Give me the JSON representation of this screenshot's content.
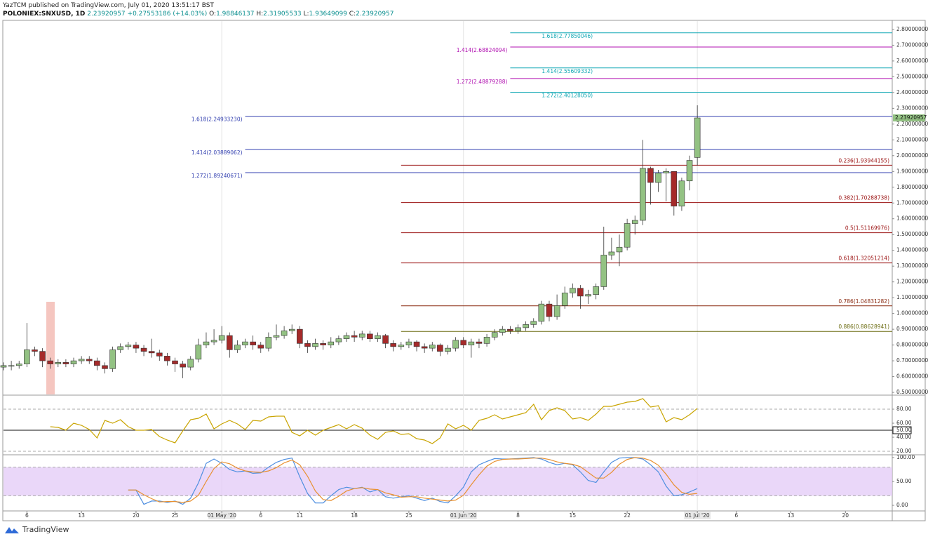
{
  "chart_data": {
    "type": "candlestick",
    "author_line": "YazTCM published on TradingView.com, July 01, 2020 13:51:17 BST",
    "symbol": "POLONIEX:SNXUSD, 1D",
    "change": "+0.27553186 (+14.03%)",
    "ohlc_labels": [
      "O:",
      "H:",
      "L:",
      "C:"
    ],
    "brand": "TradingView",
    "up_color": "#93c283",
    "down_color": "#a52a2a",
    "x": [
      "2020-04-03",
      "2020-04-04",
      "2020-04-05",
      "2020-04-06",
      "2020-04-07",
      "2020-04-08",
      "2020-04-09",
      "2020-04-10",
      "2020-04-11",
      "2020-04-12",
      "2020-04-13",
      "2020-04-14",
      "2020-04-15",
      "2020-04-16",
      "2020-04-17",
      "2020-04-18",
      "2020-04-19",
      "2020-04-20",
      "2020-04-21",
      "2020-04-22",
      "2020-04-23",
      "2020-04-24",
      "2020-04-25",
      "2020-04-26",
      "2020-04-27",
      "2020-04-28",
      "2020-04-29",
      "2020-04-30",
      "2020-05-01",
      "2020-05-02",
      "2020-05-03",
      "2020-05-04",
      "2020-05-05",
      "2020-05-06",
      "2020-05-07",
      "2020-05-08",
      "2020-05-09",
      "2020-05-10",
      "2020-05-11",
      "2020-05-12",
      "2020-05-13",
      "2020-05-14",
      "2020-05-15",
      "2020-05-16",
      "2020-05-17",
      "2020-05-18",
      "2020-05-19",
      "2020-05-20",
      "2020-05-21",
      "2020-05-22",
      "2020-05-23",
      "2020-05-24",
      "2020-05-25",
      "2020-05-26",
      "2020-05-27",
      "2020-05-28",
      "2020-05-29",
      "2020-05-30",
      "2020-05-31",
      "2020-06-01",
      "2020-06-02",
      "2020-06-03",
      "2020-06-04",
      "2020-06-05",
      "2020-06-06",
      "2020-06-07",
      "2020-06-08",
      "2020-06-09",
      "2020-06-10",
      "2020-06-11",
      "2020-06-12",
      "2020-06-13",
      "2020-06-14",
      "2020-06-15",
      "2020-06-16",
      "2020-06-17",
      "2020-06-18",
      "2020-06-19",
      "2020-06-20",
      "2020-06-21",
      "2020-06-22",
      "2020-06-23",
      "2020-06-24",
      "2020-06-25",
      "2020-06-26",
      "2020-06-27",
      "2020-06-28",
      "2020-06-29",
      "2020-06-30",
      "2020-07-01"
    ],
    "open": [
      0.66,
      0.67,
      0.67,
      0.68,
      0.77,
      0.76,
      0.7,
      0.68,
      0.69,
      0.68,
      0.7,
      0.71,
      0.7,
      0.67,
      0.65,
      0.77,
      0.79,
      0.8,
      0.78,
      0.76,
      0.75,
      0.73,
      0.7,
      0.68,
      0.66,
      0.71,
      0.8,
      0.82,
      0.83,
      0.86,
      0.77,
      0.8,
      0.82,
      0.8,
      0.78,
      0.85,
      0.86,
      0.89,
      0.9,
      0.81,
      0.79,
      0.81,
      0.8,
      0.82,
      0.84,
      0.86,
      0.85,
      0.87,
      0.84,
      0.86,
      0.81,
      0.79,
      0.8,
      0.82,
      0.79,
      0.78,
      0.8,
      0.76,
      0.78,
      0.83,
      0.8,
      0.82,
      0.81,
      0.85,
      0.88,
      0.9,
      0.89,
      0.91,
      0.93,
      0.95,
      1.06,
      0.98,
      1.05,
      1.13,
      1.16,
      1.11,
      1.12,
      1.17,
      1.37,
      1.39,
      1.42,
      1.57,
      1.59,
      1.92,
      1.83,
      1.89,
      1.9,
      1.68,
      1.84,
      1.98846137
    ],
    "high": [
      0.69,
      0.7,
      0.7,
      0.94,
      0.79,
      0.78,
      0.72,
      0.71,
      0.71,
      0.72,
      0.73,
      0.73,
      0.72,
      0.69,
      0.79,
      0.81,
      0.82,
      0.82,
      0.8,
      0.84,
      0.77,
      0.75,
      0.72,
      0.7,
      0.73,
      0.84,
      0.88,
      0.9,
      0.92,
      0.88,
      0.83,
      0.84,
      0.86,
      0.82,
      0.88,
      0.93,
      0.92,
      0.93,
      0.92,
      0.83,
      0.84,
      0.83,
      0.85,
      0.86,
      0.88,
      0.89,
      0.89,
      0.89,
      0.88,
      0.87,
      0.83,
      0.82,
      0.84,
      0.83,
      0.81,
      0.82,
      0.81,
      0.8,
      0.85,
      0.85,
      0.84,
      0.84,
      0.87,
      0.9,
      0.92,
      0.92,
      0.93,
      0.95,
      0.97,
      1.08,
      1.08,
      1.12,
      1.17,
      1.19,
      1.18,
      1.15,
      1.19,
      1.55,
      1.48,
      1.5,
      1.6,
      1.62,
      2.1,
      1.93,
      1.91,
      1.92,
      1.9,
      1.86,
      2.0,
      2.31905533
    ],
    "low": [
      0.64,
      0.64,
      0.65,
      0.66,
      0.73,
      0.66,
      0.65,
      0.66,
      0.66,
      0.66,
      0.68,
      0.68,
      0.64,
      0.62,
      0.63,
      0.75,
      0.77,
      0.75,
      0.73,
      0.72,
      0.7,
      0.67,
      0.63,
      0.59,
      0.64,
      0.69,
      0.78,
      0.8,
      0.81,
      0.72,
      0.75,
      0.78,
      0.77,
      0.75,
      0.76,
      0.83,
      0.84,
      0.87,
      0.78,
      0.75,
      0.77,
      0.77,
      0.78,
      0.8,
      0.82,
      0.82,
      0.83,
      0.82,
      0.82,
      0.78,
      0.76,
      0.77,
      0.78,
      0.76,
      0.75,
      0.76,
      0.73,
      0.74,
      0.76,
      0.78,
      0.72,
      0.78,
      0.79,
      0.83,
      0.86,
      0.87,
      0.87,
      0.89,
      0.91,
      0.93,
      0.95,
      0.96,
      1.03,
      1.1,
      1.03,
      1.06,
      1.09,
      1.15,
      1.34,
      1.3,
      1.4,
      1.5,
      1.56,
      1.69,
      1.77,
      1.71,
      1.62,
      1.65,
      1.78,
      1.93649099
    ],
    "close": [
      0.67,
      0.67,
      0.68,
      0.77,
      0.76,
      0.7,
      0.68,
      0.69,
      0.68,
      0.7,
      0.71,
      0.7,
      0.67,
      0.65,
      0.77,
      0.79,
      0.8,
      0.78,
      0.76,
      0.75,
      0.73,
      0.7,
      0.68,
      0.66,
      0.71,
      0.8,
      0.82,
      0.83,
      0.86,
      0.77,
      0.8,
      0.82,
      0.8,
      0.78,
      0.85,
      0.86,
      0.89,
      0.9,
      0.81,
      0.79,
      0.81,
      0.8,
      0.82,
      0.84,
      0.86,
      0.85,
      0.87,
      0.84,
      0.86,
      0.81,
      0.79,
      0.8,
      0.82,
      0.79,
      0.78,
      0.8,
      0.76,
      0.78,
      0.83,
      0.8,
      0.82,
      0.81,
      0.85,
      0.88,
      0.9,
      0.89,
      0.91,
      0.93,
      0.95,
      1.06,
      0.98,
      1.05,
      1.13,
      1.16,
      1.11,
      1.12,
      1.17,
      1.37,
      1.39,
      1.42,
      1.57,
      1.59,
      1.92,
      1.83,
      1.89,
      1.9,
      1.68,
      1.84,
      1.97,
      2.23920957
    ],
    "xlim": [
      "2020-04-03",
      "2020-07-26"
    ],
    "xticks": [
      {
        "value": "2020-04-06",
        "label": "6"
      },
      {
        "value": "2020-04-13",
        "label": "13"
      },
      {
        "value": "2020-04-20",
        "label": "20"
      },
      {
        "value": "2020-04-25",
        "label": "25"
      },
      {
        "value": "2020-05-01",
        "label": "01 May '20"
      },
      {
        "value": "2020-05-06",
        "label": "6"
      },
      {
        "value": "2020-05-11",
        "label": "11"
      },
      {
        "value": "2020-05-18",
        "label": "18"
      },
      {
        "value": "2020-05-25",
        "label": "25"
      },
      {
        "value": "2020-06-01",
        "label": "01 Jun '20"
      },
      {
        "value": "2020-06-08",
        "label": "8"
      },
      {
        "value": "2020-06-15",
        "label": "15"
      },
      {
        "value": "2020-06-22",
        "label": "22"
      },
      {
        "value": "2020-07-01",
        "label": "01 Jul '20"
      },
      {
        "value": "2020-07-06",
        "label": "6"
      },
      {
        "value": "2020-07-13",
        "label": "13"
      },
      {
        "value": "2020-07-20",
        "label": "20"
      }
    ],
    "x_separators": [
      "2020-05-01",
      "2020-06-01",
      "2020-07-01"
    ],
    "ylim": [
      0.487,
      2.853
    ],
    "yticks": [
      {
        "value": 0.5,
        "label": "0.50000000"
      },
      {
        "value": 0.6,
        "label": "0.60000000"
      },
      {
        "value": 0.7,
        "label": "0.70000000"
      },
      {
        "value": 0.8,
        "label": "0.80000000"
      },
      {
        "value": 0.9,
        "label": "0.90000000"
      },
      {
        "value": 1.0,
        "label": "1.00000000"
      },
      {
        "value": 1.1,
        "label": "1.10000000"
      },
      {
        "value": 1.2,
        "label": "1.20000000"
      },
      {
        "value": 1.3,
        "label": "1.30000000"
      },
      {
        "value": 1.4,
        "label": "1.40000000"
      },
      {
        "value": 1.5,
        "label": "1.50000000"
      },
      {
        "value": 1.6,
        "label": "1.60000000"
      },
      {
        "value": 1.7,
        "label": "1.70000000"
      },
      {
        "value": 1.8,
        "label": "1.80000000"
      },
      {
        "value": 1.9,
        "label": "1.90000000"
      },
      {
        "value": 2.0,
        "label": "2.00000000"
      },
      {
        "value": 2.1,
        "label": "2.10000000"
      },
      {
        "value": 2.2,
        "label": "2.20000000"
      },
      {
        "value": 2.3,
        "label": "2.30000000"
      },
      {
        "value": 2.4,
        "label": "2.40000000"
      },
      {
        "value": 2.5,
        "label": "2.50000000"
      },
      {
        "value": 2.6,
        "label": "2.60000000"
      },
      {
        "value": 2.7,
        "label": "2.70000000"
      },
      {
        "value": 2.8,
        "label": "2.80000000"
      }
    ],
    "fib_levels": [
      {
        "label": "1.618(2.77850046)",
        "value": 2.77850046,
        "color": "#13a8b5",
        "from": "2020-06-07",
        "label_side": "start"
      },
      {
        "label": "1.414(2.68824094)",
        "value": 2.68824094,
        "color": "#b010b0",
        "from": "2020-06-07",
        "label_side": "left"
      },
      {
        "label": "1.414(2.55609332)",
        "value": 2.55609332,
        "color": "#13a8b5",
        "from": "2020-06-07",
        "label_side": "start"
      },
      {
        "label": "1.272(2.48879288)",
        "value": 2.48879288,
        "color": "#b010b0",
        "from": "2020-06-07",
        "label_side": "left"
      },
      {
        "label": "1.272(2.40128050)",
        "value": 2.4012805,
        "color": "#13a8b5",
        "from": "2020-06-07",
        "label_side": "start"
      },
      {
        "label": "1.618(2.24933230)",
        "value": 2.2493323,
        "color": "#3340b0",
        "from": "2020-05-04",
        "label_side": "left"
      },
      {
        "label": "1.414(2.03889062)",
        "value": 2.03889062,
        "color": "#3340b0",
        "from": "2020-05-04",
        "label_side": "left"
      },
      {
        "label": "1.272(1.89240671)",
        "value": 1.89240671,
        "color": "#3340b0",
        "from": "2020-05-04",
        "label_side": "left"
      },
      {
        "label": "0.236(1.93944155)",
        "value": 1.93944155,
        "color": "#9a1010",
        "from": "2020-05-24",
        "label_side": "right"
      },
      {
        "label": "0.382(1.70288738)",
        "value": 1.70288738,
        "color": "#9a1010",
        "from": "2020-05-24",
        "label_side": "right"
      },
      {
        "label": "0.5(1.51169976)",
        "value": 1.51169976,
        "color": "#9a1010",
        "from": "2020-05-24",
        "label_side": "right"
      },
      {
        "label": "0.618(1.32051214)",
        "value": 1.32051214,
        "color": "#9a1010",
        "from": "2020-05-24",
        "label_side": "right"
      },
      {
        "label": "0.786(1.04831282)",
        "value": 1.04831282,
        "color": "#8a2a10",
        "from": "2020-05-24",
        "label_side": "right"
      },
      {
        "label": "0.886(0.88628941)",
        "value": 0.88628941,
        "color": "#6b6b10",
        "from": "2020-05-24",
        "label_side": "right"
      }
    ],
    "panels": [
      {
        "type": "line",
        "ylim": [
          16,
          98
        ],
        "yticks": [
          {
            "value": 80,
            "label": "80.00"
          },
          {
            "value": 60,
            "label": "60.00"
          },
          {
            "value": 50,
            "label": "50.00"
          },
          {
            "value": 40,
            "label": "40.00"
          },
          {
            "value": 20,
            "label": "20.00"
          }
        ],
        "hlines": [
          {
            "value": 80,
            "dash": true
          },
          {
            "value": 50,
            "dash": false
          },
          {
            "value": 20,
            "dash": true
          }
        ],
        "series": [
          {
            "color": "#c9a400",
            "values": [
              null,
              null,
              null,
              null,
              null,
              null,
              55,
              54,
              50,
              60,
              57,
              51,
              39,
              64,
              60,
              65,
              55,
              50,
              50,
              51,
              41,
              36,
              32,
              49,
              65,
              67,
              73,
              52,
              59,
              64,
              59,
              51,
              64,
              63,
              69,
              70,
              70,
              47,
              42,
              50,
              43,
              50,
              54,
              58,
              52,
              58,
              53,
              43,
              37,
              47,
              49,
              44,
              45,
              38,
              36,
              31,
              39,
              59,
              52,
              57,
              50,
              64,
              67,
              72,
              66,
              69,
              72,
              75,
              87,
              65,
              78,
              82,
              78,
              66,
              68,
              64,
              73,
              84,
              84,
              87,
              90,
              91,
              95,
              83,
              85,
              62,
              68,
              65,
              72,
              81
            ]
          }
        ]
      },
      {
        "type": "line",
        "ylim": [
          -10.3,
          104.4
        ],
        "yticks": [
          {
            "value": 100,
            "label": "100.00"
          },
          {
            "value": 50,
            "label": "50.00"
          },
          {
            "value": 0,
            "label": "0.00"
          }
        ],
        "band": [
          20,
          80
        ],
        "band_color": "#e3c9f7",
        "hlines": [
          {
            "value": 80,
            "dash": true
          },
          {
            "value": 20,
            "dash": true
          }
        ],
        "series": [
          {
            "color": "#4f8fe0",
            "values": [
              null,
              null,
              null,
              null,
              null,
              null,
              null,
              null,
              null,
              null,
              null,
              null,
              null,
              null,
              null,
              null,
              32,
              32,
              2,
              9,
              9,
              6,
              9,
              2,
              15,
              47,
              88,
              97,
              88,
              75,
              70,
              72,
              67,
              68,
              80,
              90,
              96,
              99,
              60,
              25,
              5,
              5,
              20,
              33,
              38,
              35,
              38,
              28,
              33,
              18,
              15,
              18,
              20,
              15,
              10,
              15,
              8,
              5,
              20,
              38,
              70,
              85,
              92,
              98,
              97,
              97,
              98,
              99,
              100,
              97,
              90,
              85,
              88,
              85,
              70,
              52,
              48,
              70,
              90,
              99,
              100,
              100,
              97,
              85,
              70,
              40,
              20,
              22,
              28,
              35
            ]
          },
          {
            "color": "#e8902f",
            "values": [
              null,
              null,
              null,
              null,
              null,
              null,
              null,
              null,
              null,
              null,
              null,
              null,
              null,
              null,
              null,
              null,
              32,
              32,
              22,
              14,
              7,
              8,
              8,
              6,
              9,
              21,
              50,
              77,
              91,
              87,
              78,
              72,
              70,
              69,
              72,
              79,
              89,
              95,
              85,
              61,
              30,
              12,
              10,
              19,
              30,
              35,
              37,
              34,
              33,
              26,
              22,
              17,
              18,
              18,
              15,
              13,
              11,
              9,
              11,
              21,
              43,
              64,
              82,
              92,
              96,
              97,
              97,
              98,
              99,
              99,
              96,
              91,
              88,
              86,
              81,
              69,
              57,
              57,
              69,
              86,
              96,
              100,
              99,
              94,
              84,
              65,
              43,
              27,
              23,
              25
            ]
          }
        ]
      }
    ]
  }
}
